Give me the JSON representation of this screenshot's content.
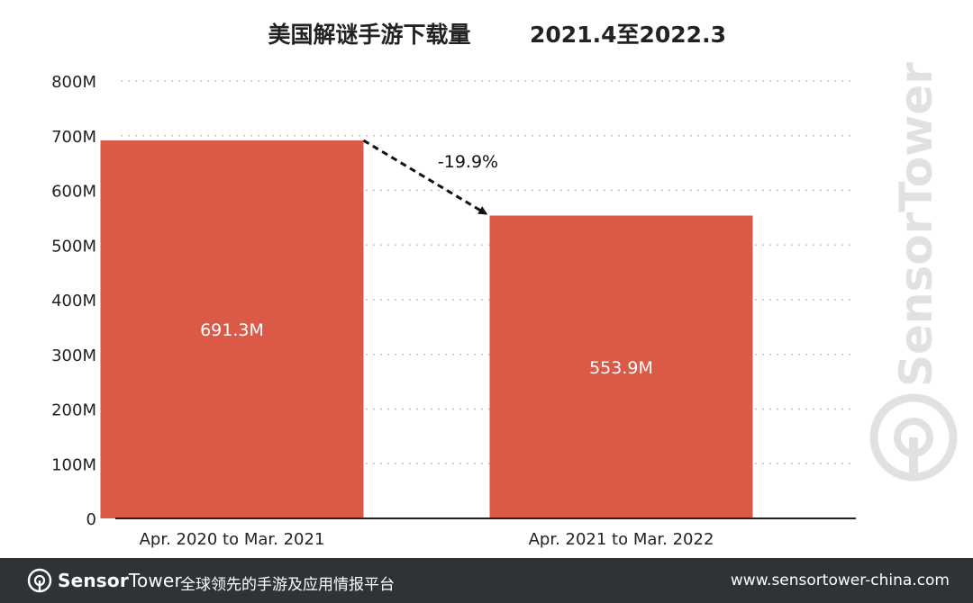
{
  "chart_data": {
    "type": "bar",
    "title": "美国解谜手游下载量",
    "subtitle": "2021.4至2022.3",
    "categories": [
      "Apr. 2020 to Mar. 2021",
      "Apr. 2021 to Mar. 2022"
    ],
    "values": [
      691.3,
      553.9
    ],
    "value_labels": [
      "691.3M",
      "553.9M"
    ],
    "unit": "M",
    "ylim": [
      0,
      800
    ],
    "yticks": [
      0,
      100,
      200,
      300,
      400,
      500,
      600,
      700,
      800
    ],
    "ytick_labels": [
      "0",
      "100M",
      "200M",
      "300M",
      "400M",
      "500M",
      "600M",
      "700M",
      "800M"
    ],
    "grid": true,
    "annotation": {
      "text": "-19.9%",
      "from_category": 0,
      "to_category": 1
    },
    "colors": {
      "bar": "#db5947",
      "label_on_bar": "#ffffff"
    }
  },
  "watermark": {
    "text": "SensorTower"
  },
  "footer": {
    "brand_bold": "Sensor",
    "brand_rest": "Tower",
    "tagline": "全球领先的手游及应用情报平台",
    "url": "www.sensortower-china.com",
    "logo_icon": "sensortower-logo-icon"
  }
}
